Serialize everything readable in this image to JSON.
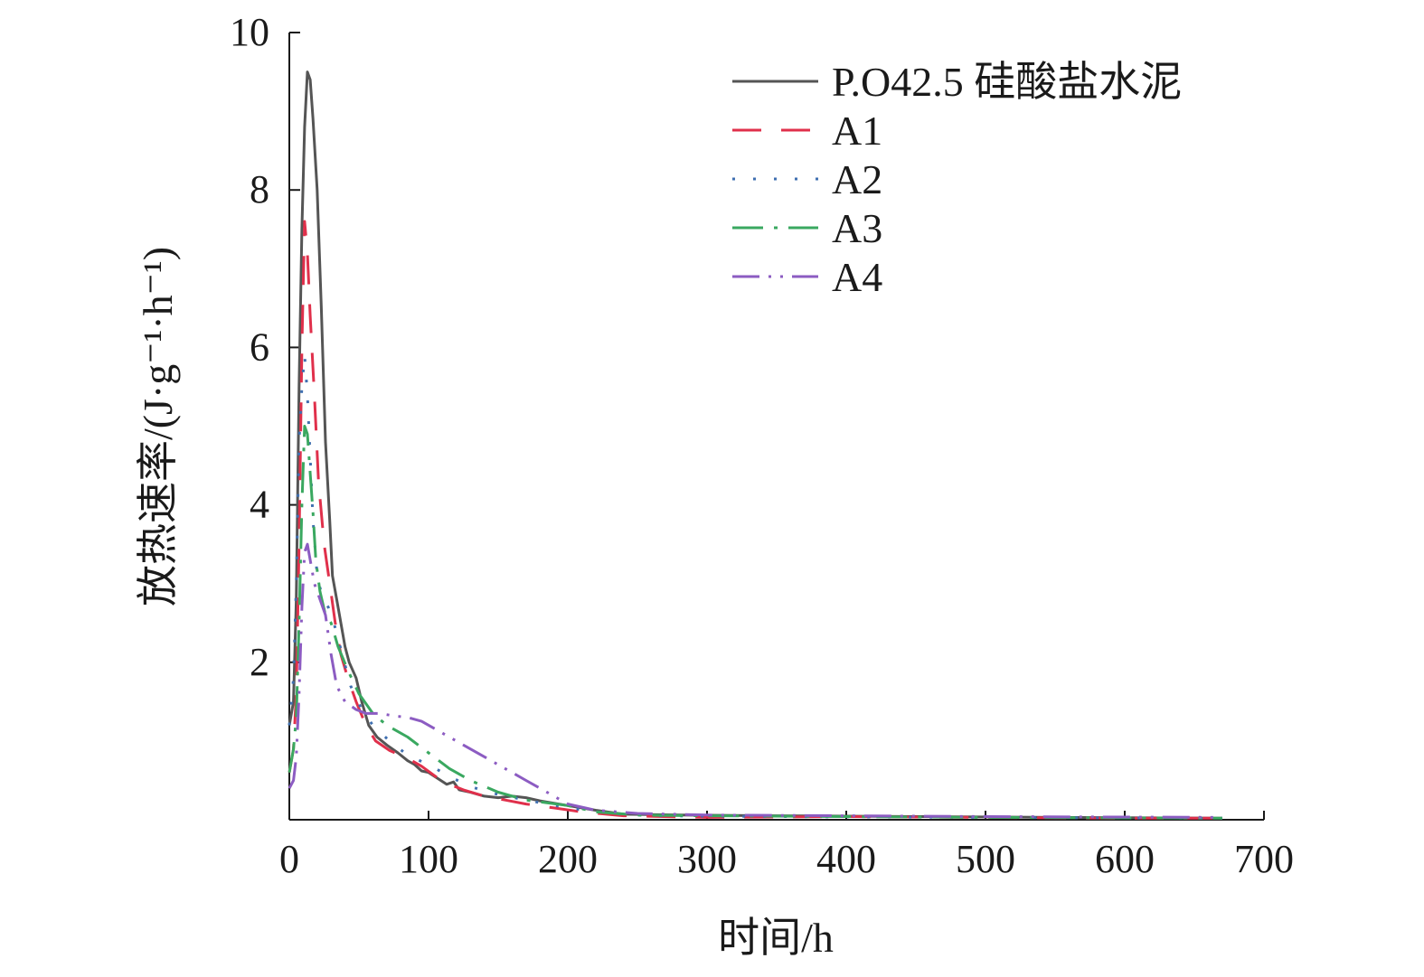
{
  "chart_data": {
    "type": "line",
    "title": "",
    "xlabel": "时间/h",
    "ylabel": "放热速率/(J·g⁻¹·h⁻¹)",
    "xlim": [
      0,
      700
    ],
    "ylim": [
      0,
      10
    ],
    "x_ticks": [
      "0",
      "100",
      "200",
      "300",
      "400",
      "500",
      "600",
      "700"
    ],
    "y_ticks": [
      "2",
      "4",
      "6",
      "8",
      "10"
    ],
    "grid": false,
    "legend_position": "top-right",
    "series": [
      {
        "name": "P.O42.5 硅酸盐水泥",
        "color": "#555555",
        "dash": "solid",
        "points": [
          [
            0,
            1.2
          ],
          [
            3,
            1.5
          ],
          [
            5,
            2.8
          ],
          [
            7,
            5.5
          ],
          [
            9,
            7.5
          ],
          [
            11,
            8.8
          ],
          [
            13,
            9.5
          ],
          [
            15,
            9.4
          ],
          [
            17,
            8.9
          ],
          [
            20,
            8.0
          ],
          [
            23,
            6.5
          ],
          [
            26,
            4.8
          ],
          [
            29,
            3.8
          ],
          [
            31,
            3.1
          ],
          [
            34,
            2.8
          ],
          [
            37,
            2.5
          ],
          [
            40,
            2.2
          ],
          [
            43,
            2.0
          ],
          [
            48,
            1.8
          ],
          [
            52,
            1.5
          ],
          [
            57,
            1.2
          ],
          [
            63,
            1.05
          ],
          [
            70,
            0.95
          ],
          [
            78,
            0.85
          ],
          [
            85,
            0.75
          ],
          [
            90,
            0.7
          ],
          [
            95,
            0.62
          ],
          [
            100,
            0.6
          ],
          [
            107,
            0.52
          ],
          [
            113,
            0.45
          ],
          [
            118,
            0.48
          ],
          [
            122,
            0.38
          ],
          [
            130,
            0.35
          ],
          [
            140,
            0.3
          ],
          [
            150,
            0.28
          ],
          [
            160,
            0.3
          ],
          [
            170,
            0.28
          ],
          [
            180,
            0.24
          ],
          [
            200,
            0.18
          ],
          [
            220,
            0.12
          ],
          [
            240,
            0.07
          ],
          [
            280,
            0.06
          ],
          [
            350,
            0.05
          ],
          [
            450,
            0.04
          ],
          [
            550,
            0.03
          ],
          [
            670,
            0.02
          ]
        ]
      },
      {
        "name": "A1",
        "color": "#e0304b",
        "dash": "32,22",
        "points": [
          [
            0,
            0.6
          ],
          [
            3,
            0.9
          ],
          [
            5,
            1.6
          ],
          [
            7,
            3.5
          ],
          [
            9,
            6.0
          ],
          [
            11,
            7.6
          ],
          [
            13,
            7.2
          ],
          [
            15,
            6.4
          ],
          [
            18,
            5.4
          ],
          [
            21,
            4.3
          ],
          [
            25,
            3.5
          ],
          [
            29,
            3.0
          ],
          [
            33,
            2.5
          ],
          [
            37,
            2.1
          ],
          [
            42,
            1.8
          ],
          [
            48,
            1.5
          ],
          [
            55,
            1.2
          ],
          [
            62,
            1.0
          ],
          [
            72,
            0.88
          ],
          [
            85,
            0.78
          ],
          [
            95,
            0.68
          ],
          [
            105,
            0.55
          ],
          [
            115,
            0.45
          ],
          [
            125,
            0.38
          ],
          [
            140,
            0.3
          ],
          [
            155,
            0.25
          ],
          [
            170,
            0.2
          ],
          [
            190,
            0.15
          ],
          [
            210,
            0.1
          ],
          [
            240,
            0.05
          ],
          [
            300,
            0.03
          ],
          [
            400,
            0.04
          ],
          [
            500,
            0.03
          ],
          [
            600,
            0.02
          ],
          [
            670,
            0.02
          ]
        ]
      },
      {
        "name": "A2",
        "color": "#3f6fb0",
        "dash": "3,20",
        "points": [
          [
            0,
            1.2
          ],
          [
            3,
            1.8
          ],
          [
            5,
            3.0
          ],
          [
            7,
            4.8
          ],
          [
            9,
            5.5
          ],
          [
            11,
            5.9
          ],
          [
            13,
            5.4
          ],
          [
            15,
            4.6
          ],
          [
            17,
            3.8
          ],
          [
            20,
            3.1
          ],
          [
            24,
            2.8
          ],
          [
            28,
            2.7
          ],
          [
            32,
            2.5
          ],
          [
            38,
            2.1
          ],
          [
            44,
            1.7
          ],
          [
            52,
            1.4
          ],
          [
            60,
            1.2
          ],
          [
            72,
            1.0
          ],
          [
            85,
            0.82
          ],
          [
            100,
            0.7
          ],
          [
            115,
            0.55
          ],
          [
            130,
            0.42
          ],
          [
            150,
            0.32
          ],
          [
            170,
            0.25
          ],
          [
            200,
            0.15
          ],
          [
            230,
            0.08
          ],
          [
            260,
            0.05
          ],
          [
            350,
            0.04
          ],
          [
            500,
            0.03
          ],
          [
            670,
            0.02
          ]
        ]
      },
      {
        "name": "A3",
        "color": "#3aa860",
        "dash": "34,12,4,12",
        "points": [
          [
            0,
            0.6
          ],
          [
            3,
            0.9
          ],
          [
            5,
            1.3
          ],
          [
            7,
            2.5
          ],
          [
            9,
            4.0
          ],
          [
            11,
            5.0
          ],
          [
            13,
            4.9
          ],
          [
            15,
            4.4
          ],
          [
            17,
            3.9
          ],
          [
            19,
            3.3
          ],
          [
            22,
            2.9
          ],
          [
            26,
            2.6
          ],
          [
            30,
            2.5
          ],
          [
            35,
            2.2
          ],
          [
            42,
            1.9
          ],
          [
            50,
            1.6
          ],
          [
            60,
            1.35
          ],
          [
            70,
            1.2
          ],
          [
            85,
            1.05
          ],
          [
            100,
            0.85
          ],
          [
            115,
            0.65
          ],
          [
            130,
            0.5
          ],
          [
            150,
            0.35
          ],
          [
            170,
            0.25
          ],
          [
            200,
            0.18
          ],
          [
            220,
            0.1
          ],
          [
            250,
            0.06
          ],
          [
            300,
            0.05
          ],
          [
            400,
            0.04
          ],
          [
            500,
            0.03
          ],
          [
            670,
            0.02
          ]
        ]
      },
      {
        "name": "A4",
        "color": "#8c5cc2",
        "dash": "30,10,3,10,3,10",
        "points": [
          [
            0,
            0.4
          ],
          [
            3,
            0.5
          ],
          [
            5,
            0.8
          ],
          [
            7,
            1.6
          ],
          [
            9,
            2.7
          ],
          [
            11,
            3.4
          ],
          [
            13,
            3.5
          ],
          [
            15,
            3.3
          ],
          [
            18,
            3.0
          ],
          [
            22,
            2.8
          ],
          [
            26,
            2.6
          ],
          [
            30,
            2.1
          ],
          [
            34,
            1.7
          ],
          [
            40,
            1.5
          ],
          [
            48,
            1.4
          ],
          [
            55,
            1.35
          ],
          [
            65,
            1.35
          ],
          [
            75,
            1.32
          ],
          [
            85,
            1.3
          ],
          [
            95,
            1.25
          ],
          [
            110,
            1.1
          ],
          [
            125,
            0.95
          ],
          [
            140,
            0.8
          ],
          [
            155,
            0.65
          ],
          [
            170,
            0.5
          ],
          [
            185,
            0.35
          ],
          [
            200,
            0.2
          ],
          [
            220,
            0.12
          ],
          [
            250,
            0.08
          ],
          [
            300,
            0.06
          ],
          [
            400,
            0.05
          ],
          [
            500,
            0.04
          ],
          [
            670,
            0.03
          ]
        ]
      }
    ]
  }
}
